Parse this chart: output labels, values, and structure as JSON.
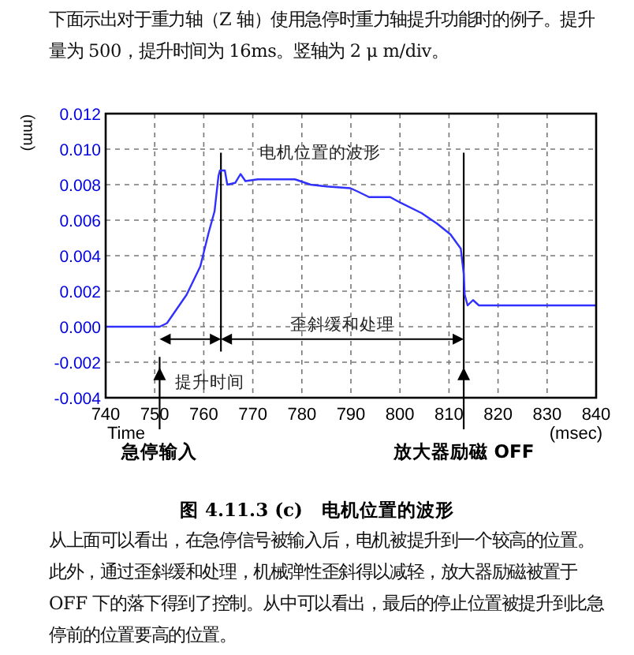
{
  "chart_data": {
    "type": "line",
    "title": "图 4.11.3 (c)　电机位置的波形",
    "xlabel": "Time",
    "ylabel": "(mm)",
    "x": [
      740,
      751,
      752.5,
      754,
      756.5,
      759.3,
      761,
      762.2,
      763,
      763.3,
      764.3,
      764.8,
      766.4,
      767.5,
      768.5,
      771,
      775.4,
      778.6,
      781.8,
      785,
      789.9,
      791.5,
      793.7,
      798,
      800,
      804.4,
      807.6,
      810.3,
      812.4,
      813,
      813.2,
      813.8,
      814.9,
      816.1,
      817.7,
      840
    ],
    "series": [
      {
        "color": "#3030ff",
        "values": [
          0,
          0,
          0.0002,
          0.0008,
          0.0018,
          0.0034,
          0.0053,
          0.0065,
          0.0085,
          0.0088,
          0.0088,
          0.008,
          0.0081,
          0.0086,
          0.0082,
          0.0083,
          0.0083,
          0.0083,
          0.008,
          0.0079,
          0.0078,
          0.0076,
          0.0073,
          0.0073,
          0.007,
          0.0064,
          0.0058,
          0.0052,
          0.0044,
          0.003,
          0.0018,
          0.0012,
          0.0015,
          0.0012,
          0.0012,
          0.0012
        ]
      }
    ],
    "xlim": [
      740,
      840
    ],
    "xticks": [
      740,
      750,
      760,
      770,
      780,
      790,
      800,
      810,
      820,
      830,
      840
    ],
    "ylim": [
      -0.004,
      0.012
    ],
    "yticks": [
      {
        "value": -0.004,
        "label": "-0.004"
      },
      {
        "value": -0.002,
        "label": "-0.002"
      },
      {
        "value": 0,
        "label": "0.000"
      },
      {
        "value": 0.002,
        "label": "0.002"
      },
      {
        "value": 0.004,
        "label": "0.004"
      },
      {
        "value": 0.006,
        "label": "0.006"
      },
      {
        "value": 0.008,
        "label": "0.008"
      },
      {
        "value": 0.01,
        "label": "0.010"
      },
      {
        "value": 0.012,
        "label": "0.012"
      }
    ],
    "grid": true,
    "marker": "none",
    "line_style": "solid",
    "ref_lines": [
      {
        "axis": "x",
        "value": 751,
        "label": "急停输入",
        "color": "#000000"
      },
      {
        "axis": "x",
        "value": 763.5,
        "color": "#000000"
      },
      {
        "axis": "x",
        "value": 813,
        "label": "放大器励磁 OFF",
        "color": "#000000"
      }
    ],
    "annotations": [
      "下面示出对于重力轴（Z 轴）使用急停时重力轴提升功能时的例子。提升量为 500，提升时间为 16ms。竖轴为 2 μ m/div。",
      "电机位置的波形",
      "歪斜缓和处理",
      "提升时间",
      "(msec)",
      "从上面可以看出，在急停信号被输入后，电机被提升到一个较高的位置。此外，通过歪斜缓和处理，机械弹性歪斜得以减轻，放大器励磁被置于 OFF 下的落下得到了控制。从中可以看出，最后的停止位置被提升到比急停前的位置要高的位置。"
    ]
  }
}
